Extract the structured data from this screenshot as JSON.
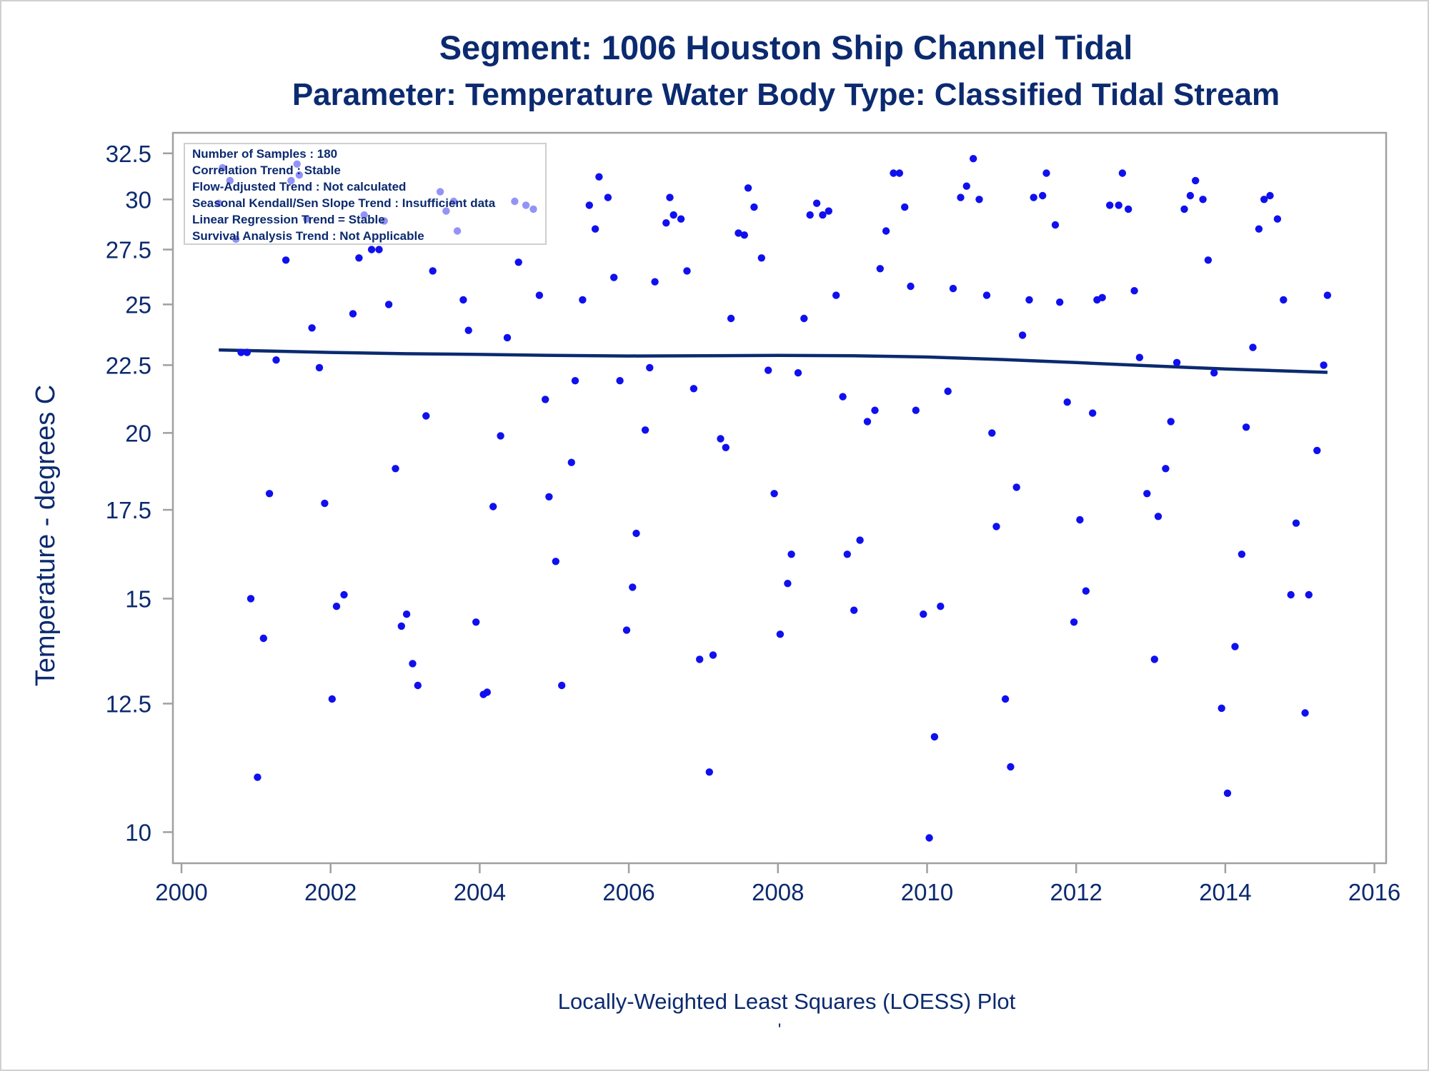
{
  "chart_data": {
    "type": "scatter",
    "title": "Segment: 1006  Houston Ship Channel Tidal",
    "subtitle": "Parameter: Temperature   Water Body Type: Classified Tidal Stream",
    "xlabel": "",
    "ylabel": "Temperature - degrees C",
    "footnote": "Locally-Weighted Least Squares (LOESS) Plot",
    "footnote_mark": "'",
    "xlim": [
      2000,
      2016
    ],
    "ylim": [
      9.7,
      33.1
    ],
    "y_scale": "log",
    "x_ticks": [
      2000,
      2002,
      2004,
      2006,
      2008,
      2010,
      2012,
      2014,
      2016
    ],
    "x_tick_labels": [
      "2000",
      "2002",
      "2004",
      "2006",
      "2008",
      "2010",
      "2012",
      "2014",
      "2016"
    ],
    "y_ticks": [
      10,
      12.5,
      15,
      17.5,
      20,
      22.5,
      25,
      27.5,
      30,
      32.5
    ],
    "y_tick_labels": [
      "10",
      "12.5",
      "15",
      "17.5",
      "20",
      "22.5",
      "25",
      "27.5",
      "30",
      "32.5"
    ],
    "grid": false,
    "legend": "none",
    "stats_box": {
      "placement": "top-left",
      "lines": [
        "Number of Samples : 180",
        "Correlation Trend : Stable",
        "Flow-Adjusted Trend : Not calculated",
        "Seasonal Kendall/Sen Slope Trend : Insufficient data",
        "Linear Regression Trend = Stable",
        "Survival Analysis Trend : Not Applicable"
      ]
    },
    "colors": {
      "points": "#1010ee",
      "loess": "#0b2a6f",
      "text": "#0b2a6f",
      "frame": "#a0a0a0"
    },
    "series": [
      {
        "type": "scatter",
        "points": [
          [
            2000.5,
            29.8
          ],
          [
            2000.55,
            31.7
          ],
          [
            2000.65,
            31.0
          ],
          [
            2000.73,
            28.0
          ],
          [
            2000.8,
            23.0
          ],
          [
            2000.88,
            23.0
          ],
          [
            2000.93,
            15.0
          ],
          [
            2001.02,
            11.0
          ],
          [
            2001.1,
            14.0
          ],
          [
            2001.18,
            18.0
          ],
          [
            2001.27,
            22.7
          ],
          [
            2001.4,
            27.0
          ],
          [
            2001.47,
            31.0
          ],
          [
            2001.55,
            31.9
          ],
          [
            2001.58,
            31.3
          ],
          [
            2001.68,
            29.0
          ],
          [
            2001.75,
            24.0
          ],
          [
            2001.85,
            22.4
          ],
          [
            2001.92,
            17.7
          ],
          [
            2002.02,
            12.6
          ],
          [
            2002.08,
            14.8
          ],
          [
            2002.18,
            15.1
          ],
          [
            2002.3,
            24.6
          ],
          [
            2002.38,
            27.1
          ],
          [
            2002.45,
            29.2
          ],
          [
            2002.55,
            27.5
          ],
          [
            2002.65,
            27.5
          ],
          [
            2002.72,
            28.9
          ],
          [
            2002.78,
            25.0
          ],
          [
            2002.87,
            18.8
          ],
          [
            2002.95,
            14.3
          ],
          [
            2003.02,
            14.6
          ],
          [
            2003.1,
            13.4
          ],
          [
            2003.17,
            12.9
          ],
          [
            2003.28,
            20.6
          ],
          [
            2003.37,
            26.5
          ],
          [
            2003.47,
            30.4
          ],
          [
            2003.55,
            29.4
          ],
          [
            2003.65,
            29.9
          ],
          [
            2003.7,
            28.4
          ],
          [
            2003.78,
            25.2
          ],
          [
            2003.85,
            23.9
          ],
          [
            2003.95,
            14.4
          ],
          [
            2004.05,
            12.7
          ],
          [
            2004.1,
            12.75
          ],
          [
            2004.18,
            17.6
          ],
          [
            2004.28,
            19.9
          ],
          [
            2004.37,
            23.6
          ],
          [
            2004.47,
            29.9
          ],
          [
            2004.52,
            26.9
          ],
          [
            2004.62,
            29.7
          ],
          [
            2004.72,
            29.5
          ],
          [
            2004.8,
            25.4
          ],
          [
            2004.88,
            21.2
          ],
          [
            2004.93,
            17.9
          ],
          [
            2005.02,
            16.0
          ],
          [
            2005.1,
            12.9
          ],
          [
            2005.23,
            19.0
          ],
          [
            2005.28,
            21.9
          ],
          [
            2005.38,
            25.2
          ],
          [
            2005.47,
            29.7
          ],
          [
            2005.55,
            28.5
          ],
          [
            2005.6,
            31.2
          ],
          [
            2005.72,
            30.1
          ],
          [
            2005.8,
            26.2
          ],
          [
            2005.88,
            21.9
          ],
          [
            2005.97,
            14.2
          ],
          [
            2006.05,
            15.3
          ],
          [
            2006.1,
            16.8
          ],
          [
            2006.22,
            20.1
          ],
          [
            2006.28,
            22.4
          ],
          [
            2006.35,
            26.0
          ],
          [
            2006.5,
            28.8
          ],
          [
            2006.55,
            30.1
          ],
          [
            2006.6,
            29.2
          ],
          [
            2006.7,
            29.0
          ],
          [
            2006.78,
            26.5
          ],
          [
            2006.87,
            21.6
          ],
          [
            2006.95,
            13.5
          ],
          [
            2007.08,
            11.1
          ],
          [
            2007.13,
            13.6
          ],
          [
            2007.23,
            19.8
          ],
          [
            2007.3,
            19.5
          ],
          [
            2007.37,
            24.4
          ],
          [
            2007.47,
            28.3
          ],
          [
            2007.55,
            28.2
          ],
          [
            2007.6,
            30.6
          ],
          [
            2007.68,
            29.6
          ],
          [
            2007.78,
            27.1
          ],
          [
            2007.87,
            22.3
          ],
          [
            2007.95,
            18.0
          ],
          [
            2008.03,
            14.1
          ],
          [
            2008.13,
            15.4
          ],
          [
            2008.18,
            16.2
          ],
          [
            2008.27,
            22.2
          ],
          [
            2008.35,
            24.4
          ],
          [
            2008.43,
            29.2
          ],
          [
            2008.52,
            29.8
          ],
          [
            2008.6,
            29.2
          ],
          [
            2008.68,
            29.4
          ],
          [
            2008.78,
            25.4
          ],
          [
            2008.87,
            21.3
          ],
          [
            2008.93,
            16.2
          ],
          [
            2009.02,
            14.7
          ],
          [
            2009.1,
            16.6
          ],
          [
            2009.2,
            20.4
          ],
          [
            2009.3,
            20.8
          ],
          [
            2009.37,
            26.6
          ],
          [
            2009.45,
            28.4
          ],
          [
            2009.55,
            31.4
          ],
          [
            2009.63,
            31.4
          ],
          [
            2009.7,
            29.6
          ],
          [
            2009.78,
            25.8
          ],
          [
            2009.85,
            20.8
          ],
          [
            2009.95,
            14.6
          ],
          [
            2010.03,
            9.9
          ],
          [
            2010.1,
            11.8
          ],
          [
            2010.18,
            14.8
          ],
          [
            2010.28,
            21.5
          ],
          [
            2010.35,
            25.7
          ],
          [
            2010.45,
            30.1
          ],
          [
            2010.53,
            30.7
          ],
          [
            2010.62,
            32.2
          ],
          [
            2010.7,
            30.0
          ],
          [
            2010.8,
            25.4
          ],
          [
            2010.87,
            20.0
          ],
          [
            2010.93,
            17.0
          ],
          [
            2011.05,
            12.6
          ],
          [
            2011.12,
            11.2
          ],
          [
            2011.2,
            18.2
          ],
          [
            2011.28,
            23.7
          ],
          [
            2011.37,
            25.2
          ],
          [
            2011.43,
            30.1
          ],
          [
            2011.55,
            30.2
          ],
          [
            2011.6,
            31.4
          ],
          [
            2011.72,
            28.7
          ],
          [
            2011.78,
            25.1
          ],
          [
            2011.88,
            21.1
          ],
          [
            2011.97,
            14.4
          ],
          [
            2012.05,
            17.2
          ],
          [
            2012.13,
            15.2
          ],
          [
            2012.22,
            20.7
          ],
          [
            2012.28,
            25.2
          ],
          [
            2012.35,
            25.3
          ],
          [
            2012.45,
            29.7
          ],
          [
            2012.57,
            29.7
          ],
          [
            2012.62,
            31.4
          ],
          [
            2012.7,
            29.5
          ],
          [
            2012.78,
            25.6
          ],
          [
            2012.85,
            22.8
          ],
          [
            2012.95,
            18.0
          ],
          [
            2013.05,
            13.5
          ],
          [
            2013.1,
            17.3
          ],
          [
            2013.2,
            18.8
          ],
          [
            2013.27,
            20.4
          ],
          [
            2013.35,
            22.6
          ],
          [
            2013.45,
            29.5
          ],
          [
            2013.53,
            30.2
          ],
          [
            2013.6,
            31.0
          ],
          [
            2013.7,
            30.0
          ],
          [
            2013.77,
            27.0
          ],
          [
            2013.85,
            22.2
          ],
          [
            2013.95,
            12.4
          ],
          [
            2014.03,
            10.7
          ],
          [
            2014.13,
            13.8
          ],
          [
            2014.22,
            16.2
          ],
          [
            2014.28,
            20.2
          ],
          [
            2014.37,
            23.2
          ],
          [
            2014.45,
            28.5
          ],
          [
            2014.52,
            30.0
          ],
          [
            2014.6,
            30.2
          ],
          [
            2014.7,
            29.0
          ],
          [
            2014.78,
            25.2
          ],
          [
            2014.88,
            15.1
          ],
          [
            2014.95,
            17.1
          ],
          [
            2015.07,
            12.3
          ],
          [
            2015.12,
            15.1
          ],
          [
            2015.23,
            19.4
          ],
          [
            2015.32,
            22.5
          ],
          [
            2015.37,
            25.4
          ]
        ]
      },
      {
        "type": "line",
        "points": [
          [
            2000.5,
            23.1
          ],
          [
            2001.0,
            23.07
          ],
          [
            2002.0,
            23.0
          ],
          [
            2003.0,
            22.95
          ],
          [
            2004.0,
            22.92
          ],
          [
            2005.0,
            22.88
          ],
          [
            2006.0,
            22.86
          ],
          [
            2007.0,
            22.87
          ],
          [
            2008.0,
            22.88
          ],
          [
            2009.0,
            22.87
          ],
          [
            2010.0,
            22.82
          ],
          [
            2011.0,
            22.72
          ],
          [
            2012.0,
            22.6
          ],
          [
            2013.0,
            22.47
          ],
          [
            2014.0,
            22.35
          ],
          [
            2015.37,
            22.22
          ]
        ]
      }
    ]
  }
}
